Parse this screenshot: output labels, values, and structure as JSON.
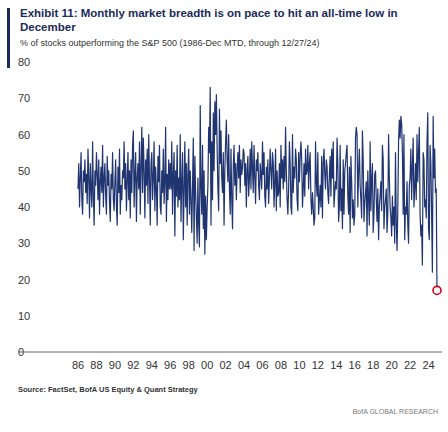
{
  "chart_data": {
    "type": "line",
    "title": "Exhibit 11: Monthly market breadth is on pace to hit an all-time low in December",
    "subtitle": "% of stocks outperforming the S&P 500 (1986-Dec MTD, through 12/27/24)",
    "source": "Source: FactSet, BofA US Equity & Quant Strategy",
    "brand": "BofA GLOBAL RESEARCH",
    "color": "#1f3470",
    "grid": false,
    "ylim": [
      0,
      80
    ],
    "yticks": [
      0,
      10,
      20,
      30,
      40,
      50,
      60,
      70,
      80
    ],
    "categories": [
      "86",
      null,
      null,
      null,
      null,
      null,
      null,
      null,
      null,
      null,
      null,
      null,
      null,
      null,
      null,
      null,
      null,
      null,
      null,
      null,
      null,
      null,
      null,
      null,
      "88",
      null,
      null,
      null,
      null,
      null,
      null,
      null,
      null,
      null,
      null,
      null,
      null,
      null,
      null,
      null,
      null,
      null,
      null,
      null,
      null,
      null,
      null,
      null,
      "90",
      null,
      null,
      null,
      null,
      null,
      null,
      null,
      null,
      null,
      null,
      null,
      null,
      null,
      null,
      null,
      null,
      null,
      null,
      null,
      null,
      null,
      null,
      null,
      "92",
      null,
      null,
      null,
      null,
      null,
      null,
      null,
      null,
      null,
      null,
      null,
      null,
      null,
      null,
      null,
      null,
      null,
      null,
      null,
      null,
      null,
      null,
      null,
      "94",
      null,
      null,
      null,
      null,
      null,
      null,
      null,
      null,
      null,
      null,
      null,
      null,
      null,
      null,
      null,
      null,
      null,
      null,
      null,
      null,
      null,
      null,
      null,
      "96",
      null,
      null,
      null,
      null,
      null,
      null,
      null,
      null,
      null,
      null,
      null,
      null,
      null,
      null,
      null,
      null,
      null,
      null,
      null,
      null,
      null,
      null,
      null,
      "98",
      null,
      null,
      null,
      null,
      null,
      null,
      null,
      null,
      null,
      null,
      null,
      null,
      null,
      null,
      null,
      null,
      null,
      null,
      null,
      null,
      null,
      null,
      null,
      "00",
      null,
      null,
      null,
      null,
      null,
      null,
      null,
      null,
      null,
      null,
      null,
      null,
      null,
      null,
      null,
      null,
      null,
      null,
      null,
      null,
      null,
      null,
      null,
      "02",
      null,
      null,
      null,
      null,
      null,
      null,
      null,
      null,
      null,
      null,
      null,
      null,
      null,
      null,
      null,
      null,
      null,
      null,
      null,
      null,
      null,
      null,
      null,
      "04",
      null,
      null,
      null,
      null,
      null,
      null,
      null,
      null,
      null,
      null,
      null,
      null,
      null,
      null,
      null,
      null,
      null,
      null,
      null,
      null,
      null,
      null,
      null,
      "06",
      null,
      null,
      null,
      null,
      null,
      null,
      null,
      null,
      null,
      null,
      null,
      null,
      null,
      null,
      null,
      null,
      null,
      null,
      null,
      null,
      null,
      null,
      null,
      "08",
      null,
      null,
      null,
      null,
      null,
      null,
      null,
      null,
      null,
      null,
      null,
      null,
      null,
      null,
      null,
      null,
      null,
      null,
      null,
      null,
      null,
      null,
      null,
      "10",
      null,
      null,
      null,
      null,
      null,
      null,
      null,
      null,
      null,
      null,
      null,
      null,
      null,
      null,
      null,
      null,
      null,
      null,
      null,
      null,
      null,
      null,
      null,
      "12",
      null,
      null,
      null,
      null,
      null,
      null,
      null,
      null,
      null,
      null,
      null,
      null,
      null,
      null,
      null,
      null,
      null,
      null,
      null,
      null,
      null,
      null,
      null,
      "14",
      null,
      null,
      null,
      null,
      null,
      null,
      null,
      null,
      null,
      null,
      null,
      null,
      null,
      null,
      null,
      null,
      null,
      null,
      null,
      null,
      null,
      null,
      null,
      "16",
      null,
      null,
      null,
      null,
      null,
      null,
      null,
      null,
      null,
      null,
      null,
      null,
      null,
      null,
      null,
      null,
      null,
      null,
      null,
      null,
      null,
      null,
      null,
      "18",
      null,
      null,
      null,
      null,
      null,
      null,
      null,
      null,
      null,
      null,
      null,
      null,
      null,
      null,
      null,
      null,
      null,
      null,
      null,
      null,
      null,
      null,
      null,
      "20",
      null,
      null,
      null,
      null,
      null,
      null,
      null,
      null,
      null,
      null,
      null,
      null,
      null,
      null,
      null,
      null,
      null,
      null,
      null,
      null,
      null,
      null,
      null,
      "22",
      null,
      null,
      null,
      null,
      null,
      null,
      null,
      null,
      null,
      null,
      null,
      null,
      null,
      null,
      null,
      null,
      null,
      null,
      null,
      null,
      null,
      null,
      null,
      "24",
      null,
      null,
      null,
      null,
      null,
      null,
      null,
      null,
      null,
      null,
      null
    ],
    "values": [
      45,
      52,
      40,
      48,
      55,
      42,
      38,
      50,
      47,
      53,
      44,
      49,
      41,
      56,
      48,
      37,
      52,
      45,
      40,
      58,
      43,
      35,
      50,
      46,
      55,
      49,
      42,
      53,
      38,
      47,
      51,
      44,
      57,
      40,
      48,
      52,
      43,
      38,
      54,
      46,
      50,
      41,
      36,
      49,
      45,
      55,
      42,
      39,
      47,
      53,
      40,
      35,
      51,
      44,
      56,
      38,
      46,
      42,
      50,
      48,
      58,
      45,
      52,
      39,
      47,
      55,
      42,
      50,
      37,
      53,
      44,
      57,
      61,
      40,
      49,
      55,
      36,
      48,
      52,
      45,
      58,
      38,
      51,
      62,
      44,
      59,
      50,
      37,
      53,
      46,
      56,
      41,
      60,
      48,
      35,
      52,
      55,
      42,
      48,
      58,
      39,
      51,
      45,
      35,
      54,
      47,
      57,
      40,
      38,
      50,
      44,
      56,
      41,
      47,
      62,
      36,
      49,
      42,
      53,
      45,
      52,
      45,
      58,
      38,
      49,
      55,
      32,
      50,
      43,
      57,
      40,
      48,
      42,
      60,
      36,
      47,
      55,
      31,
      45,
      58,
      40,
      52,
      35,
      49,
      56,
      38,
      50,
      42,
      33,
      46,
      59,
      28,
      54,
      44,
      37,
      30,
      48,
      35,
      29,
      68,
      45,
      38,
      57,
      34,
      50,
      27,
      43,
      31,
      40,
      46,
      62,
      55,
      73,
      35,
      58,
      42,
      66,
      50,
      69,
      60,
      71,
      56,
      45,
      39,
      67,
      52,
      61,
      48,
      44,
      55,
      35,
      50,
      58,
      64,
      53,
      47,
      60,
      45,
      38,
      56,
      42,
      34,
      51,
      57,
      46,
      52,
      42,
      50,
      55,
      48,
      57,
      44,
      53,
      49,
      51,
      56,
      55,
      46,
      52,
      40,
      50,
      54,
      43,
      48,
      56,
      45,
      58,
      51,
      44,
      57,
      48,
      41,
      53,
      50,
      55,
      46,
      42,
      52,
      49,
      45,
      58,
      49,
      55,
      43,
      40,
      51,
      45,
      53,
      41,
      48,
      56,
      50,
      45,
      55,
      52,
      40,
      47,
      56,
      39,
      50,
      43,
      44,
      52,
      40,
      57,
      48,
      53,
      45,
      54,
      47,
      62,
      50,
      42,
      38,
      45,
      58,
      52,
      40,
      38,
      60,
      44,
      51,
      48,
      56,
      53,
      42,
      39,
      55,
      47,
      54,
      58,
      53,
      40,
      45,
      52,
      43,
      56,
      49,
      50,
      57,
      45,
      52,
      55,
      42,
      38,
      44,
      40,
      35,
      37,
      58,
      47,
      43,
      55,
      38,
      42,
      46,
      40,
      54,
      37,
      52,
      56,
      49,
      45,
      53,
      51,
      44,
      41,
      49,
      54,
      43,
      56,
      48,
      58,
      40,
      44,
      47,
      45,
      59,
      52,
      36,
      40,
      57,
      39,
      45,
      34,
      53,
      38,
      50,
      52,
      55,
      57,
      43,
      38,
      51,
      33,
      54,
      47,
      37,
      42,
      35,
      38,
      59,
      62,
      60,
      40,
      50,
      56,
      46,
      42,
      37,
      61,
      53,
      36,
      41,
      44,
      47,
      32,
      50,
      42,
      35,
      58,
      39,
      48,
      52,
      33,
      38,
      49,
      50,
      42,
      36,
      45,
      31,
      40,
      43,
      47,
      39,
      57,
      53,
      34,
      40,
      42,
      45,
      33,
      38,
      60,
      48,
      40,
      37,
      32,
      43,
      35,
      40,
      30,
      55,
      36,
      28,
      39,
      58,
      64,
      59,
      65,
      63,
      55,
      38,
      60,
      31,
      40,
      38,
      47,
      35,
      30,
      46,
      48,
      56,
      42,
      51,
      59,
      40,
      45,
      52,
      42,
      60,
      47,
      55,
      62,
      38,
      32,
      35,
      24,
      55,
      53,
      40,
      42,
      37,
      58,
      66,
      34,
      31,
      57,
      52,
      38,
      22,
      65,
      48,
      56,
      44,
      45,
      17
    ]
  }
}
